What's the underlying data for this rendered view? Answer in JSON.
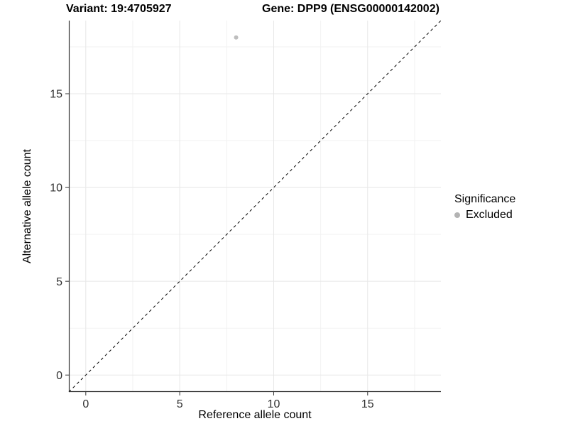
{
  "header": {
    "variant_title": "Variant: 19:4705927",
    "gene_title": "Gene: DPP9 (ENSG00000142002)"
  },
  "chart_data": {
    "type": "scatter",
    "xlabel": "Reference allele count",
    "ylabel": "Alternative allele count",
    "xlim": [
      -0.9,
      18.9
    ],
    "ylim": [
      -0.9,
      18.9
    ],
    "xticks": [
      0,
      5,
      10,
      15
    ],
    "yticks": [
      0,
      5,
      10,
      15
    ],
    "xticks_minor": [
      2.5,
      7.5,
      12.5,
      17.5
    ],
    "yticks_minor": [
      2.5,
      7.5,
      12.5,
      17.5
    ],
    "grid": "major+minor",
    "series": [
      {
        "name": "Excluded",
        "color": "#bebebe",
        "point_radius": 3,
        "points": [
          {
            "x": 8,
            "y": 18
          }
        ]
      }
    ],
    "abline": {
      "slope": 1,
      "intercept": 0,
      "style": "dashed",
      "color": "#000000"
    },
    "legend": {
      "position": "right",
      "title": "Significance",
      "entries": [
        {
          "label": "Excluded",
          "color": "#b3b3b3"
        }
      ]
    },
    "colors": {
      "grid_major": "#e7e7e7",
      "grid_minor": "#f2f2f2",
      "axis_line": "#333333",
      "tick_mark": "#333333",
      "tick_label": "#303030",
      "title_text": "#000000"
    }
  }
}
